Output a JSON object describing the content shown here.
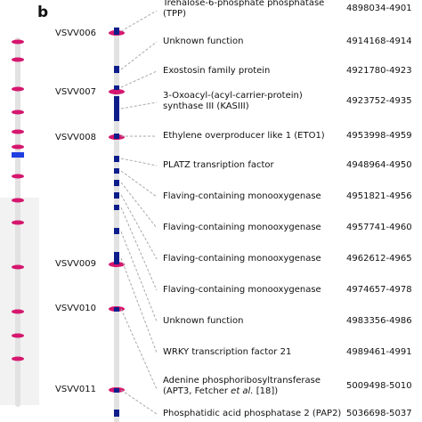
{
  "panel_label": "b",
  "colors": {
    "chromosome_bar": "#e2e2e2",
    "locus_band": "#f2f2f2",
    "marker_tick": "#d6176e",
    "gene_block": "#0d1d8a",
    "overview_region": "#1f3fe0",
    "connector": "#aaaaaa"
  },
  "markers": [
    "VSVV006",
    "VSVV007",
    "VSVV008",
    "VSVV009",
    "VSVV010",
    "VSVV011"
  ],
  "genes": [
    {
      "name": "Trehalose-6-phosphate phosphatase",
      "name_line2": "(TPP)",
      "position": "4898034-4901"
    },
    {
      "name": "Unknown function",
      "position": "4914168-4914"
    },
    {
      "name": "Exostosin family protein",
      "position": "4921780-4923"
    },
    {
      "name": "3-Oxoacyl-(acyl-carrier-protein)",
      "name_line2": "synthase III (KASIII)",
      "position": "4923752-4935"
    },
    {
      "name": "Ethylene overproducer like 1 (ETO1)",
      "position": "4953998-4959"
    },
    {
      "name": "PLATZ transription factor",
      "position": "4948964-4950"
    },
    {
      "name": "Flaving-containing monooxygenase",
      "position": "4951821-4956"
    },
    {
      "name": "Flaving-containing monooxygenase",
      "position": "4957741-4960"
    },
    {
      "name": "Flaving-containing monooxygenase",
      "position": "4962612-4965"
    },
    {
      "name": "Flaving-containing monooxygenase",
      "position": "4974657-4978"
    },
    {
      "name": "Unknown function",
      "position": "4983356-4986"
    },
    {
      "name": "WRKY transcription factor 21",
      "position": "4989461-4991"
    },
    {
      "name": "Adenine phosphoribosyltransferase",
      "name_line2_pre": "(APT3, Fetcher ",
      "name_line2_em": "et al.",
      "name_line2_post": " [18])",
      "position": "5009498-5010"
    },
    {
      "name": "Phosphatidic acid phosphatase 2 (PAP2)",
      "position": "5036698-5037"
    }
  ]
}
